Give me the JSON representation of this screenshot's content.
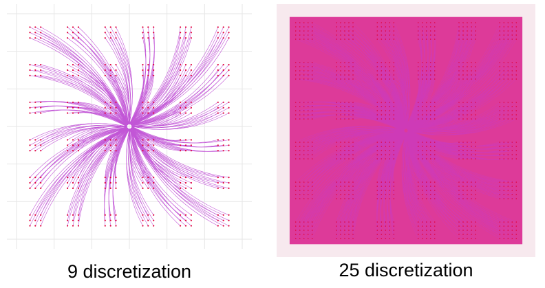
{
  "figures": [
    {
      "caption": "9 discretization",
      "discretization": 9,
      "grid_cells": 6,
      "line_color": "#b83ad0",
      "point_color": "#e0003a",
      "background": "#ffffff",
      "gridline_color": "#e6e6e6"
    },
    {
      "caption": "25 discretization",
      "discretization": 25,
      "grid_cells": 6,
      "line_color": "#c23bd1",
      "point_color": "#e0003a",
      "fill_color": "#d81b8a",
      "background": "#f7e9ee"
    }
  ]
}
